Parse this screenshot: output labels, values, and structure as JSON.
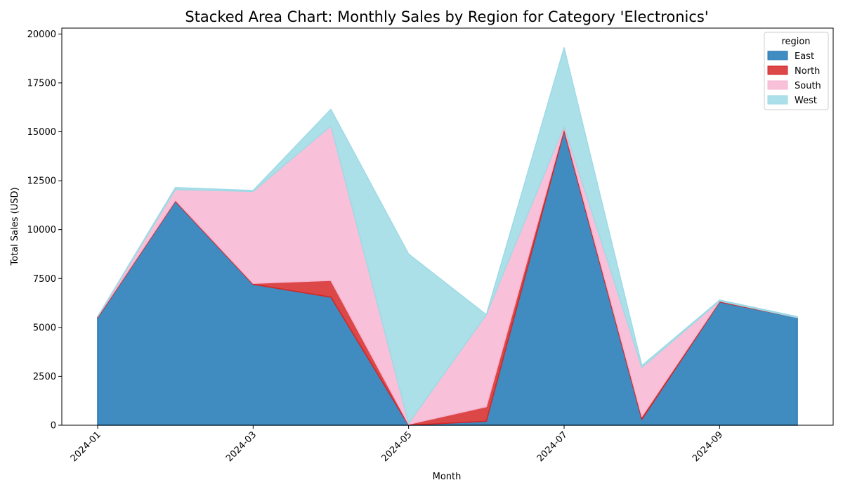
{
  "chart_data": {
    "type": "area",
    "stacked": true,
    "title": "Stacked Area Chart: Monthly Sales by Region for Category 'Electronics'",
    "xlabel": "Month",
    "ylabel": "Total Sales (USD)",
    "ylim": [
      0,
      20300
    ],
    "y_ticks": [
      0,
      2500,
      5000,
      7500,
      10000,
      12500,
      15000,
      17500,
      20000
    ],
    "x": [
      "2024-01",
      "2024-02",
      "2024-03",
      "2024-04",
      "2024-05",
      "2024-06",
      "2024-07",
      "2024-08",
      "2024-09",
      "2024-10"
    ],
    "x_tick_labels": [
      "2024-01",
      "2024-03",
      "2024-05",
      "2024-07",
      "2024-09"
    ],
    "legend": {
      "title": "region",
      "placement": "top-right"
    },
    "grid": false,
    "series": [
      {
        "name": "East",
        "color": "#1f77b4",
        "values": [
          5500,
          11450,
          7200,
          6550,
          0,
          200,
          15050,
          300,
          6300,
          5500
        ]
      },
      {
        "name": "North",
        "color": "#d62728",
        "values": [
          50,
          50,
          50,
          850,
          50,
          750,
          150,
          150,
          50,
          0
        ]
      },
      {
        "name": "South",
        "color": "#f7b6d2",
        "values": [
          0,
          550,
          4700,
          7900,
          50,
          4700,
          100,
          2500,
          0,
          0
        ]
      },
      {
        "name": "West",
        "color": "#9edae5",
        "values": [
          0,
          100,
          50,
          850,
          8650,
          0,
          4000,
          100,
          50,
          50
        ]
      }
    ]
  }
}
